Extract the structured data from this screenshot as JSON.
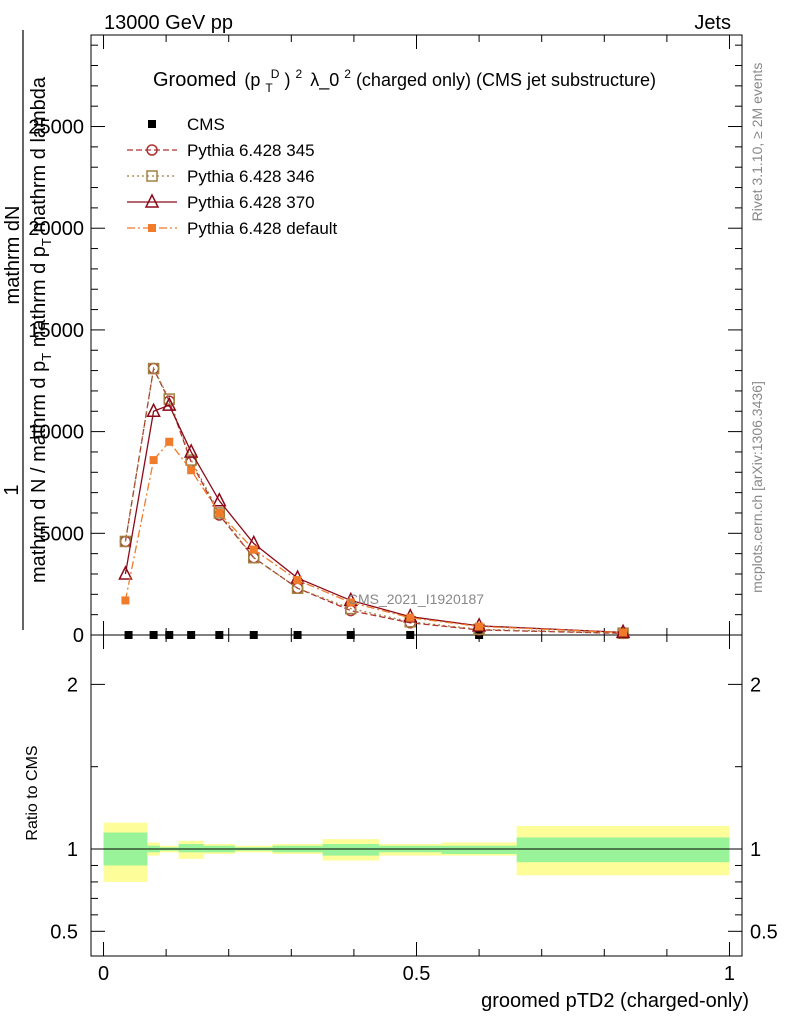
{
  "header": {
    "left": "13000 GeV pp",
    "right": "Jets"
  },
  "side_labels": {
    "rivet": "Rivet 3.1.10, ≥ 2M events",
    "mcplots": "mcplots.cern.ch [arXiv:1306.3436]"
  },
  "watermark": "CMS_2021_I1920187",
  "chart_data": [
    {
      "type": "line",
      "title": "Groomed (p_T^D)^2 λ_0^2 (charged only) (CMS jet substructure)",
      "title_parts": {
        "word": "Groomed",
        "p": "(p",
        "sub": "T",
        "sup": "D",
        "close": ")",
        "sq1": "2",
        "lambda": "λ_0",
        "sq2": "2",
        "rest": " (charged only) (CMS jet substructure)"
      },
      "ylabel": "1 / mathrm d N / mathrm d p_T mathrm d N / mathrm d p_T mathrm d lambda",
      "ylabel_parts": {
        "one": "1",
        "num": "mathrm dN",
        "den": "mathrm d N / mathrm d p",
        "den_sub": "T",
        "den_rest": "mathrm d p",
        "den_rest_sub": "T",
        "den_tail": "mathrm d lambda"
      },
      "xlim": [
        -0.02,
        1.02
      ],
      "ylim": [
        0,
        29500
      ],
      "yticks": [
        0,
        5000,
        10000,
        15000,
        20000,
        25000
      ],
      "ytick_labels": [
        "0",
        "5000",
        "10000",
        "15000",
        "20000",
        "25000"
      ],
      "legend_position": "top-left",
      "series": [
        {
          "name": "CMS",
          "color": "#000000",
          "marker": "filled-square",
          "line": "none",
          "x": [
            0.04,
            0.08,
            0.105,
            0.14,
            0.185,
            0.24,
            0.31,
            0.395,
            0.49,
            0.6,
            0.83
          ],
          "y": [
            0,
            0,
            0,
            0,
            0,
            0,
            0,
            0,
            0,
            0,
            0
          ]
        },
        {
          "name": "Pythia 6.428 345",
          "color": "#b03030",
          "marker": "open-circle",
          "line": "dashed",
          "x": [
            0.035,
            0.08,
            0.105,
            0.14,
            0.185,
            0.24,
            0.31,
            0.395,
            0.49,
            0.6,
            0.83
          ],
          "y": [
            4600,
            13100,
            11500,
            8500,
            5900,
            3800,
            2300,
            1200,
            600,
            250,
            80
          ]
        },
        {
          "name": "Pythia 6.428 346",
          "color": "#a08040",
          "marker": "open-square",
          "line": "dotted",
          "x": [
            0.035,
            0.08,
            0.105,
            0.14,
            0.185,
            0.24,
            0.31,
            0.395,
            0.49,
            0.6,
            0.83
          ],
          "y": [
            4600,
            13100,
            11600,
            8600,
            6000,
            3800,
            2300,
            1300,
            650,
            280,
            90
          ]
        },
        {
          "name": "Pythia 6.428 370",
          "color": "#8b0a1a",
          "marker": "open-triangle",
          "line": "solid",
          "x": [
            0.035,
            0.08,
            0.105,
            0.14,
            0.185,
            0.24,
            0.31,
            0.395,
            0.49,
            0.6,
            0.83
          ],
          "y": [
            3000,
            11000,
            11300,
            9000,
            6600,
            4500,
            2800,
            1700,
            900,
            450,
            130
          ]
        },
        {
          "name": "Pythia 6.428 default",
          "color": "#f07b2a",
          "marker": "filled-square",
          "line": "dashdot",
          "x": [
            0.035,
            0.08,
            0.105,
            0.14,
            0.185,
            0.24,
            0.31,
            0.395,
            0.49,
            0.6,
            0.83
          ],
          "y": [
            1700,
            8600,
            9500,
            8100,
            6000,
            4200,
            2700,
            1600,
            850,
            420,
            120
          ]
        }
      ]
    },
    {
      "type": "area",
      "xlabel": "groomed pTD2 (charged-only)",
      "ylabel": "Ratio to CMS",
      "xlim": [
        -0.02,
        1.02
      ],
      "ylim": [
        0.35,
        2.3
      ],
      "xticks": [
        0,
        0.5,
        1
      ],
      "xtick_labels": [
        "0",
        "0.5",
        "1"
      ],
      "yticks": [
        0.5,
        1,
        2
      ],
      "ytick_labels": [
        "0.5",
        "1",
        "2"
      ],
      "bins": [
        {
          "x0": 0.0,
          "x1": 0.07,
          "stat_lo": 0.9,
          "stat_hi": 1.1,
          "tot_lo": 0.8,
          "tot_hi": 1.16
        },
        {
          "x0": 0.07,
          "x1": 0.09,
          "stat_lo": 0.98,
          "stat_hi": 1.02,
          "tot_lo": 0.96,
          "tot_hi": 1.04
        },
        {
          "x0": 0.09,
          "x1": 0.12,
          "stat_lo": 0.99,
          "stat_hi": 1.01,
          "tot_lo": 0.98,
          "tot_hi": 1.02
        },
        {
          "x0": 0.12,
          "x1": 0.16,
          "stat_lo": 0.98,
          "stat_hi": 1.03,
          "tot_lo": 0.94,
          "tot_hi": 1.05
        },
        {
          "x0": 0.16,
          "x1": 0.21,
          "stat_lo": 0.98,
          "stat_hi": 1.02,
          "tot_lo": 0.97,
          "tot_hi": 1.03
        },
        {
          "x0": 0.21,
          "x1": 0.27,
          "stat_lo": 0.99,
          "stat_hi": 1.01,
          "tot_lo": 0.98,
          "tot_hi": 1.02
        },
        {
          "x0": 0.27,
          "x1": 0.35,
          "stat_lo": 0.98,
          "stat_hi": 1.02,
          "tot_lo": 0.97,
          "tot_hi": 1.03
        },
        {
          "x0": 0.35,
          "x1": 0.44,
          "stat_lo": 0.96,
          "stat_hi": 1.03,
          "tot_lo": 0.93,
          "tot_hi": 1.06
        },
        {
          "x0": 0.44,
          "x1": 0.54,
          "stat_lo": 0.98,
          "stat_hi": 1.02,
          "tot_lo": 0.96,
          "tot_hi": 1.03
        },
        {
          "x0": 0.54,
          "x1": 0.66,
          "stat_lo": 0.97,
          "stat_hi": 1.02,
          "tot_lo": 0.96,
          "tot_hi": 1.04
        },
        {
          "x0": 0.66,
          "x1": 1.0,
          "stat_lo": 0.92,
          "stat_hi": 1.07,
          "tot_lo": 0.84,
          "tot_hi": 1.14
        }
      ],
      "stat_color": "#99f399",
      "total_color": "#fdfd99",
      "reference_line": 1
    }
  ]
}
